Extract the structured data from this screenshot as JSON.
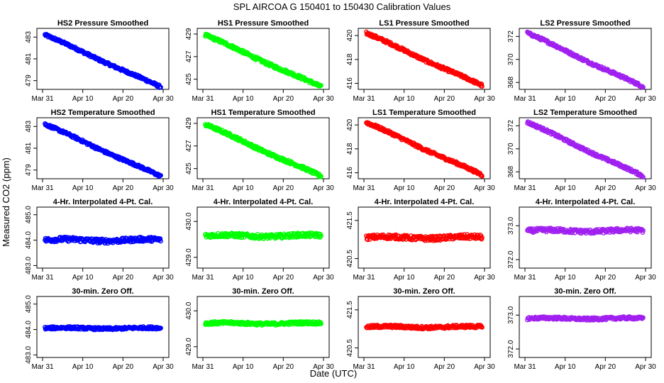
{
  "figure": {
    "title": "SPL   AIRCOA G   150401 to 150430   Calibration Values",
    "xlabel": "Date (UTC)",
    "ylabel": "Measured CO2 (ppm)"
  },
  "colors": {
    "HS2": "#0000ff",
    "HS1": "#00ff00",
    "LS1": "#ff0000",
    "LS2": "#a020f0"
  },
  "chart_data": [
    {
      "type": "scatter",
      "title": "HS2 Pressure Smoothed",
      "series_color_key": "HS2",
      "x_range": [
        0,
        30
      ],
      "ylim": [
        478.2,
        483.8
      ],
      "yticks": [
        "479",
        "481",
        "483"
      ],
      "ytick_values": [
        479,
        481,
        483
      ],
      "xticks": [
        "Mar 31",
        "Apr 10",
        "Apr 20",
        "Apr 30"
      ],
      "xtick_values": [
        0,
        10,
        20,
        30
      ],
      "start": 483.2,
      "end": 478.4,
      "noise": 0.12
    },
    {
      "type": "scatter",
      "title": "HS1 Pressure Smoothed",
      "series_color_key": "HS1",
      "x_range": [
        0,
        30
      ],
      "ylim": [
        424.1,
        429.5
      ],
      "yticks": [
        "425",
        "427",
        "429"
      ],
      "ytick_values": [
        425,
        427,
        429
      ],
      "xticks": [
        "Mar 31",
        "Apr 10",
        "Apr 20",
        "Apr 30"
      ],
      "xtick_values": [
        0,
        10,
        20,
        30
      ],
      "start": 428.9,
      "end": 424.3,
      "noise": 0.14
    },
    {
      "type": "scatter",
      "title": "LS1 Pressure Smoothed",
      "series_color_key": "LS1",
      "x_range": [
        0,
        30
      ],
      "ylim": [
        415.5,
        420.6
      ],
      "yticks": [
        "416",
        "418",
        "420"
      ],
      "ytick_values": [
        416,
        418,
        420
      ],
      "xticks": [
        "Mar 31",
        "Apr 10",
        "Apr 20",
        "Apr 30"
      ],
      "xtick_values": [
        0,
        10,
        20,
        30
      ],
      "start": 420.2,
      "end": 415.8,
      "noise": 0.12
    },
    {
      "type": "scatter",
      "title": "LS2 Pressure Smoothed",
      "series_color_key": "LS2",
      "x_range": [
        0,
        30
      ],
      "ylim": [
        367.4,
        372.7
      ],
      "yticks": [
        "368",
        "370",
        "372"
      ],
      "ytick_values": [
        368,
        370,
        372
      ],
      "xticks": [
        "Mar 31",
        "Apr 10",
        "Apr 20",
        "Apr 30"
      ],
      "xtick_values": [
        0,
        10,
        20,
        30
      ],
      "start": 372.3,
      "end": 367.6,
      "noise": 0.12
    },
    {
      "type": "scatter",
      "title": "HS2 Temperature Smoothed",
      "series_color_key": "HS2",
      "x_range": [
        0,
        30
      ],
      "ylim": [
        478.2,
        483.8
      ],
      "yticks": [
        "479",
        "481",
        "483"
      ],
      "ytick_values": [
        479,
        481,
        483
      ],
      "xticks": [
        "Mar 31",
        "Apr 10",
        "Apr 20",
        "Apr 30"
      ],
      "xtick_values": [
        0,
        10,
        20,
        30
      ],
      "start": 483.2,
      "end": 478.4,
      "noise": 0.12
    },
    {
      "type": "scatter",
      "title": "HS1 Temperature Smoothed",
      "series_color_key": "HS1",
      "x_range": [
        0,
        30
      ],
      "ylim": [
        424.1,
        429.5
      ],
      "yticks": [
        "425",
        "427",
        "429"
      ],
      "ytick_values": [
        425,
        427,
        429
      ],
      "xticks": [
        "Mar 31",
        "Apr 10",
        "Apr 20",
        "Apr 30"
      ],
      "xtick_values": [
        0,
        10,
        20,
        30
      ],
      "start": 428.9,
      "end": 424.3,
      "noise": 0.14
    },
    {
      "type": "scatter",
      "title": "LS1 Temperature Smoothed",
      "series_color_key": "LS1",
      "x_range": [
        0,
        30
      ],
      "ylim": [
        415.5,
        420.6
      ],
      "yticks": [
        "416",
        "418",
        "420"
      ],
      "ytick_values": [
        416,
        418,
        420
      ],
      "xticks": [
        "Mar 31",
        "Apr 10",
        "Apr 20",
        "Apr 30"
      ],
      "xtick_values": [
        0,
        10,
        20,
        30
      ],
      "start": 420.2,
      "end": 415.8,
      "noise": 0.12
    },
    {
      "type": "scatter",
      "title": "LS2 Temperature Smoothed",
      "series_color_key": "LS2",
      "x_range": [
        0,
        30
      ],
      "ylim": [
        367.4,
        372.7
      ],
      "yticks": [
        "368",
        "370",
        "372"
      ],
      "ytick_values": [
        368,
        370,
        372
      ],
      "xticks": [
        "Mar 31",
        "Apr 10",
        "Apr 20",
        "Apr 30"
      ],
      "xtick_values": [
        0,
        10,
        20,
        30
      ],
      "start": 372.3,
      "end": 367.6,
      "noise": 0.12
    },
    {
      "type": "scatter",
      "title": "4-Hr. Interpolated 4-Pt. Cal.",
      "series_color_key": "HS2",
      "x_range": [
        0,
        30
      ],
      "ylim": [
        482.9,
        485.3
      ],
      "yticks": [
        "483.0",
        "484.0",
        "485.0"
      ],
      "ytick_values": [
        483,
        484,
        485
      ],
      "xticks": [
        "Mar 31",
        "Apr 10",
        "Apr 20",
        "Apr 30"
      ],
      "xtick_values": [
        0,
        10,
        20,
        30
      ],
      "start": 484.0,
      "end": 484.0,
      "noise": 0.09
    },
    {
      "type": "scatter",
      "title": "4-Hr. Interpolated 4-Pt. Cal.",
      "series_color_key": "HS1",
      "x_range": [
        0,
        30
      ],
      "ylim": [
        428.7,
        430.4
      ],
      "yticks": [
        "429.0",
        "430.0"
      ],
      "ytick_values": [
        429,
        430
      ],
      "xticks": [
        "Mar 31",
        "Apr 10",
        "Apr 20",
        "Apr 30"
      ],
      "xtick_values": [
        0,
        10,
        20,
        30
      ],
      "start": 429.6,
      "end": 429.6,
      "noise": 0.06
    },
    {
      "type": "scatter",
      "title": "4-Hr. Interpolated 4-Pt. Cal.",
      "series_color_key": "LS1",
      "x_range": [
        0,
        30
      ],
      "ylim": [
        420.25,
        421.85
      ],
      "yticks": [
        "420.5",
        "421.5"
      ],
      "ytick_values": [
        420.5,
        421.5
      ],
      "xticks": [
        "Mar 31",
        "Apr 10",
        "Apr 20",
        "Apr 30"
      ],
      "xtick_values": [
        0,
        10,
        20,
        30
      ],
      "start": 421.05,
      "end": 421.05,
      "noise": 0.06
    },
    {
      "type": "scatter",
      "title": "4-Hr. Interpolated 4-Pt. Cal.",
      "series_color_key": "LS2",
      "x_range": [
        0,
        30
      ],
      "ylim": [
        371.75,
        373.55
      ],
      "yticks": [
        "372.0",
        "373.0"
      ],
      "ytick_values": [
        372,
        373
      ],
      "xticks": [
        "Mar 31",
        "Apr 10",
        "Apr 20",
        "Apr 30"
      ],
      "xtick_values": [
        0,
        10,
        20,
        30
      ],
      "start": 372.85,
      "end": 372.85,
      "noise": 0.06
    },
    {
      "type": "scatter",
      "title": "30-min. Zero Off.",
      "series_color_key": "HS2",
      "x_range": [
        0,
        30
      ],
      "ylim": [
        482.9,
        485.3
      ],
      "yticks": [
        "483.0",
        "484.0",
        "485.0"
      ],
      "ytick_values": [
        483,
        484,
        485
      ],
      "xticks": [
        "Mar 31",
        "Apr 10",
        "Apr 20",
        "Apr 30"
      ],
      "xtick_values": [
        0,
        10,
        20,
        30
      ],
      "start": 484.05,
      "end": 484.05,
      "noise": 0.05
    },
    {
      "type": "scatter",
      "title": "30-min. Zero Off.",
      "series_color_key": "HS1",
      "x_range": [
        0,
        30
      ],
      "ylim": [
        428.7,
        430.4
      ],
      "yticks": [
        "429.0",
        "430.0"
      ],
      "ytick_values": [
        429,
        430
      ],
      "xticks": [
        "Mar 31",
        "Apr 10",
        "Apr 20",
        "Apr 30"
      ],
      "xtick_values": [
        0,
        10,
        20,
        30
      ],
      "start": 429.65,
      "end": 429.65,
      "noise": 0.04
    },
    {
      "type": "scatter",
      "title": "30-min. Zero Off.",
      "series_color_key": "LS1",
      "x_range": [
        0,
        30
      ],
      "ylim": [
        420.25,
        421.85
      ],
      "yticks": [
        "420.5",
        "421.5"
      ],
      "ytick_values": [
        420.5,
        421.5
      ],
      "xticks": [
        "Mar 31",
        "Apr 10",
        "Apr 20",
        "Apr 30"
      ],
      "xtick_values": [
        0,
        10,
        20,
        30
      ],
      "start": 421.05,
      "end": 421.05,
      "noise": 0.04
    },
    {
      "type": "scatter",
      "title": "30-min. Zero Off.",
      "series_color_key": "LS2",
      "x_range": [
        0,
        30
      ],
      "ylim": [
        371.75,
        373.55
      ],
      "yticks": [
        "372.0",
        "373.0"
      ],
      "ytick_values": [
        372,
        373
      ],
      "xticks": [
        "Mar 31",
        "Apr 10",
        "Apr 20",
        "Apr 30"
      ],
      "xtick_values": [
        0,
        10,
        20,
        30
      ],
      "start": 372.9,
      "end": 372.9,
      "noise": 0.04
    }
  ]
}
